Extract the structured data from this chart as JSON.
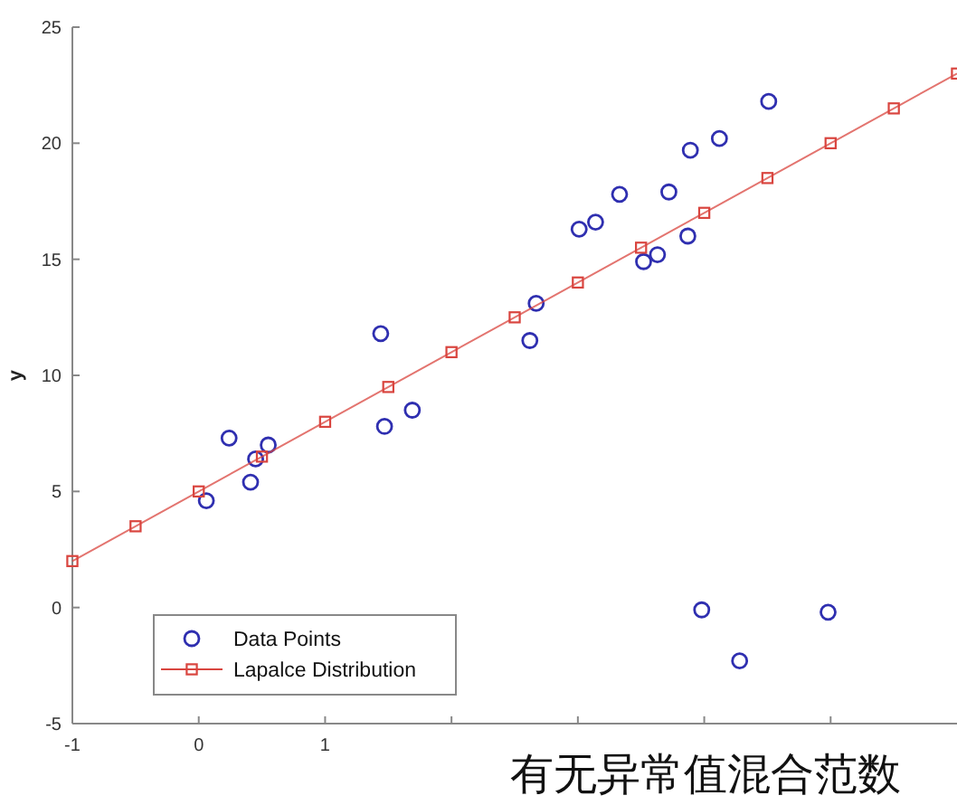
{
  "chart_data": {
    "type": "scatter",
    "ylabel": "y",
    "annotations": [
      "有无异常值混合范数"
    ],
    "xlim": [
      -1,
      6
    ],
    "ylim": [
      -5,
      25
    ],
    "xticks": [
      -1,
      0,
      1,
      {
        "value": 2,
        "label": null
      },
      {
        "value": 3,
        "label": null
      },
      {
        "value": 4,
        "label": null
      },
      {
        "value": 5,
        "label": null
      }
    ],
    "yticks": [
      -5,
      0,
      5,
      10,
      15,
      20,
      25
    ],
    "grid": false,
    "legend": "bottom left",
    "series": [
      {
        "name": "Data Points",
        "marker": "circle",
        "color": "#2f2fb0",
        "x": [
          0.06,
          0.24,
          0.41,
          0.45,
          0.55,
          1.47,
          1.69,
          1.44,
          2.62,
          2.67,
          3.01,
          3.14,
          3.33,
          3.52,
          3.63,
          3.72,
          3.87,
          3.89,
          4.12,
          4.51,
          3.98,
          4.28,
          4.98
        ],
        "values": [
          4.6,
          7.3,
          5.4,
          6.4,
          7.0,
          7.8,
          8.5,
          11.8,
          11.5,
          13.1,
          16.3,
          16.6,
          17.8,
          14.9,
          15.2,
          17.9,
          16.0,
          19.7,
          20.2,
          21.8,
          -0.1,
          -2.3,
          -0.2
        ]
      },
      {
        "name": "Lapalce Distribution",
        "type": "line",
        "marker": "square",
        "line_style": "solid",
        "color": "#d9453f",
        "x": [
          -1,
          -0.5,
          0,
          0.5,
          1,
          1.5,
          2,
          2.5,
          3,
          3.5,
          4,
          4.5,
          5,
          5.5,
          6
        ],
        "values": [
          2,
          3.5,
          5,
          6.5,
          8,
          9.5,
          11,
          12.5,
          14,
          15.5,
          17,
          18.5,
          20,
          21.5,
          23
        ]
      }
    ]
  }
}
